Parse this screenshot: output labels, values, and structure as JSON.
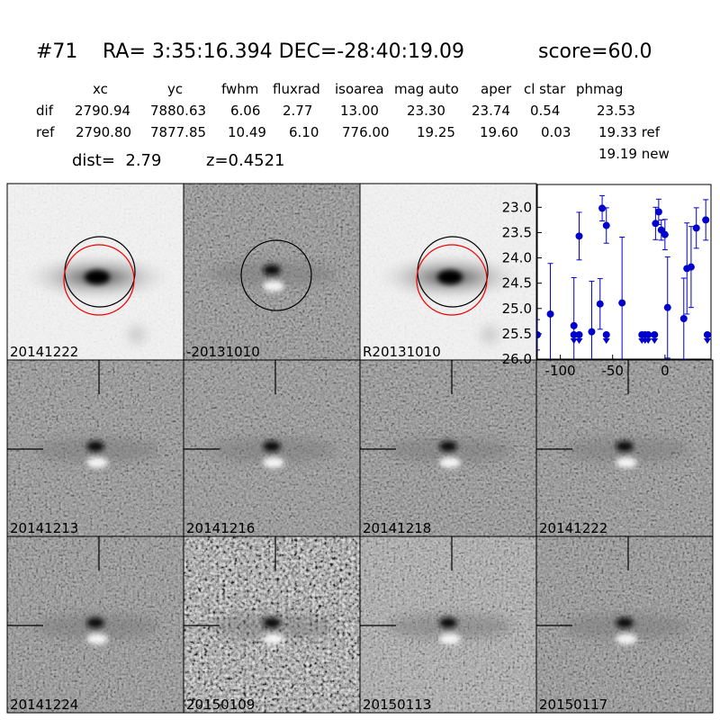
{
  "header": {
    "id": "#71",
    "coords": "RA= 3:35:16.394 DEC=-28:40:19.09",
    "score": "score=60.0",
    "dist": "dist=  2.79",
    "z": "z=0.4521"
  },
  "table": {
    "columns": [
      "xc",
      "yc",
      "fwhm",
      "fluxrad",
      "isoarea",
      "mag auto",
      "aper",
      "cl star",
      "phmag"
    ],
    "rows": [
      [
        "dif",
        "2790.94",
        "7880.63",
        "6.06",
        "2.77",
        "13.00",
        "23.30",
        "23.74",
        "0.54",
        "23.53"
      ],
      [
        "ref",
        "2790.80",
        "7877.85",
        "10.49",
        "6.10",
        "776.00",
        "19.25",
        "19.60",
        "0.03",
        "19.33 ref"
      ]
    ],
    "extra": "19.19 new"
  },
  "panels": [
    {
      "label": "20141222"
    },
    {
      "label": "-20131010"
    },
    {
      "label": "R20131010"
    },
    {
      "label": "20141213"
    },
    {
      "label": "20141216"
    },
    {
      "label": "20141218"
    },
    {
      "label": "20141222",
      "color": "#ff0000"
    },
    {
      "label": "20141224"
    },
    {
      "label": "20150109"
    },
    {
      "label": "20150113"
    },
    {
      "label": "20150117"
    }
  ],
  "chart_data": {
    "type": "scatter",
    "xlim": [
      -122,
      44
    ],
    "ylim": [
      26.0,
      22.55
    ],
    "xticks": [
      -100,
      -50,
      0
    ],
    "yticks": [
      {
        "value": 23,
        "label": "23.0"
      },
      23.5,
      {
        "value": 24,
        "label": "24.0"
      },
      24.5,
      {
        "value": 25,
        "label": "25.0"
      },
      25.5,
      {
        "value": 26,
        "label": "26.0"
      }
    ],
    "series": [
      {
        "color": "#0000cc",
        "marker": "o",
        "x": [
          -122,
          -109.5,
          -87,
          -82,
          -70,
          -62,
          -60,
          -56,
          -41,
          -9,
          -6,
          -3.5,
          0,
          2.5,
          18,
          21,
          25,
          30,
          39
        ],
        "values": [
          25.52,
          25.11,
          25.34,
          23.57,
          25.46,
          24.91,
          23.02,
          23.36,
          24.89,
          23.32,
          23.09,
          23.45,
          23.54,
          24.98,
          25.2,
          24.21,
          24.18,
          23.41,
          23.25
        ],
        "errors": [
          0.3,
          1.0,
          0.95,
          0.47,
          1.0,
          0.5,
          0.25,
          0.35,
          1.3,
          0.32,
          0.25,
          0.2,
          0.3,
          1.0,
          0.8,
          0.9,
          0.8,
          0.4,
          0.4
        ]
      },
      {
        "color": "#0000cc",
        "marker": "v",
        "x": [
          -87,
          -82,
          -56,
          -22,
          -19,
          -16,
          -10,
          40.5
        ],
        "values": [
          25.52,
          25.52,
          25.52,
          25.52,
          25.52,
          25.52,
          25.52,
          25.52
        ]
      }
    ]
  }
}
